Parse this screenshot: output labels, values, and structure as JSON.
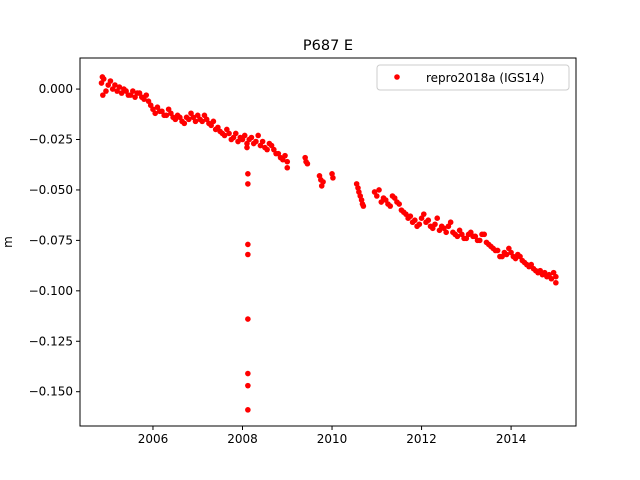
{
  "chart_data": {
    "type": "scatter",
    "title": "P687 E",
    "xlabel": "",
    "ylabel": "m",
    "xlim": [
      2004.37,
      2015.45
    ],
    "ylim": [
      -0.167,
      0.0154
    ],
    "xticks": [
      2006,
      2008,
      2010,
      2012,
      2014
    ],
    "xtick_labels": [
      "2006",
      "2008",
      "2010",
      "2012",
      "2014"
    ],
    "yticks": [
      0.0,
      -0.025,
      -0.05,
      -0.075,
      -0.1,
      -0.125,
      -0.15
    ],
    "ytick_labels": [
      "0.000",
      "−0.025",
      "−0.050",
      "−0.075",
      "−0.100",
      "−0.125",
      "−0.150"
    ],
    "grid": false,
    "legend": {
      "placement": "top-right",
      "entries": [
        "repro2018a (IGS14)"
      ]
    },
    "series": [
      {
        "name": "repro2018a (IGS14)",
        "color": "#ff0000",
        "marker": "circle",
        "points": [
          [
            2004.85,
            0.003
          ],
          [
            2004.87,
            0.006
          ],
          [
            2004.88,
            -0.003
          ],
          [
            2004.9,
            0.005
          ],
          [
            2004.95,
            -0.001
          ],
          [
            2005.0,
            0.002
          ],
          [
            2005.05,
            0.004
          ],
          [
            2005.1,
            0.0
          ],
          [
            2005.15,
            0.002
          ],
          [
            2005.2,
            -0.001
          ],
          [
            2005.25,
            0.001
          ],
          [
            2005.3,
            -0.002
          ],
          [
            2005.35,
            0.0
          ],
          [
            2005.4,
            -0.001
          ],
          [
            2005.45,
            -0.003
          ],
          [
            2005.5,
            -0.003
          ],
          [
            2005.55,
            -0.001
          ],
          [
            2005.6,
            -0.004
          ],
          [
            2005.65,
            -0.002
          ],
          [
            2005.7,
            -0.002
          ],
          [
            2005.75,
            -0.004
          ],
          [
            2005.8,
            -0.005
          ],
          [
            2005.85,
            -0.003
          ],
          [
            2005.9,
            -0.006
          ],
          [
            2005.95,
            -0.008
          ],
          [
            2006.0,
            -0.01
          ],
          [
            2006.05,
            -0.012
          ],
          [
            2006.1,
            -0.009
          ],
          [
            2006.15,
            -0.011
          ],
          [
            2006.2,
            -0.011
          ],
          [
            2006.25,
            -0.013
          ],
          [
            2006.3,
            -0.013
          ],
          [
            2006.35,
            -0.01
          ],
          [
            2006.4,
            -0.012
          ],
          [
            2006.45,
            -0.014
          ],
          [
            2006.5,
            -0.015
          ],
          [
            2006.55,
            -0.013
          ],
          [
            2006.6,
            -0.014
          ],
          [
            2006.65,
            -0.016
          ],
          [
            2006.7,
            -0.017
          ],
          [
            2006.75,
            -0.014
          ],
          [
            2006.8,
            -0.015
          ],
          [
            2006.85,
            -0.012
          ],
          [
            2006.9,
            -0.014
          ],
          [
            2006.95,
            -0.016
          ],
          [
            2007.0,
            -0.013
          ],
          [
            2007.05,
            -0.015
          ],
          [
            2007.1,
            -0.016
          ],
          [
            2007.15,
            -0.013
          ],
          [
            2007.2,
            -0.015
          ],
          [
            2007.25,
            -0.017
          ],
          [
            2007.3,
            -0.018
          ],
          [
            2007.35,
            -0.016
          ],
          [
            2007.4,
            -0.02
          ],
          [
            2007.45,
            -0.019
          ],
          [
            2007.5,
            -0.021
          ],
          [
            2007.55,
            -0.022
          ],
          [
            2007.6,
            -0.023
          ],
          [
            2007.65,
            -0.02
          ],
          [
            2007.7,
            -0.022
          ],
          [
            2007.75,
            -0.025
          ],
          [
            2007.8,
            -0.024
          ],
          [
            2007.85,
            -0.022
          ],
          [
            2007.9,
            -0.026
          ],
          [
            2007.95,
            -0.024
          ],
          [
            2008.0,
            -0.025
          ],
          [
            2008.05,
            -0.023
          ],
          [
            2008.1,
            -0.027
          ],
          [
            2008.1,
            -0.029
          ],
          [
            2008.15,
            -0.025
          ],
          [
            2008.2,
            -0.024
          ],
          [
            2008.25,
            -0.027
          ],
          [
            2008.3,
            -0.026
          ],
          [
            2008.35,
            -0.023
          ],
          [
            2008.4,
            -0.028
          ],
          [
            2008.45,
            -0.026
          ],
          [
            2008.5,
            -0.029
          ],
          [
            2008.55,
            -0.03
          ],
          [
            2008.6,
            -0.027
          ],
          [
            2008.65,
            -0.028
          ],
          [
            2008.7,
            -0.03
          ],
          [
            2008.75,
            -0.032
          ],
          [
            2008.8,
            -0.032
          ],
          [
            2008.85,
            -0.034
          ],
          [
            2008.9,
            -0.035
          ],
          [
            2008.95,
            -0.033
          ],
          [
            2009.0,
            -0.036
          ],
          [
            2009.0,
            -0.039
          ],
          [
            2009.4,
            -0.034
          ],
          [
            2009.42,
            -0.036
          ],
          [
            2009.45,
            -0.037
          ],
          [
            2009.72,
            -0.043
          ],
          [
            2009.75,
            -0.045
          ],
          [
            2009.77,
            -0.048
          ],
          [
            2009.8,
            -0.046
          ],
          [
            2010.0,
            -0.042
          ],
          [
            2010.02,
            -0.044
          ],
          [
            2010.55,
            -0.047
          ],
          [
            2010.58,
            -0.049
          ],
          [
            2010.6,
            -0.051
          ],
          [
            2010.63,
            -0.053
          ],
          [
            2010.66,
            -0.055
          ],
          [
            2010.68,
            -0.057
          ],
          [
            2010.7,
            -0.058
          ],
          [
            2010.95,
            -0.051
          ],
          [
            2011.0,
            -0.053
          ],
          [
            2011.05,
            -0.05
          ],
          [
            2011.1,
            -0.056
          ],
          [
            2011.15,
            -0.054
          ],
          [
            2011.2,
            -0.055
          ],
          [
            2011.25,
            -0.057
          ],
          [
            2011.3,
            -0.058
          ],
          [
            2011.35,
            -0.053
          ],
          [
            2011.4,
            -0.054
          ],
          [
            2011.45,
            -0.056
          ],
          [
            2011.5,
            -0.057
          ],
          [
            2011.55,
            -0.06
          ],
          [
            2011.6,
            -0.061
          ],
          [
            2011.65,
            -0.062
          ],
          [
            2011.7,
            -0.064
          ],
          [
            2011.75,
            -0.063
          ],
          [
            2011.8,
            -0.066
          ],
          [
            2011.85,
            -0.065
          ],
          [
            2011.9,
            -0.068
          ],
          [
            2011.95,
            -0.067
          ],
          [
            2012.0,
            -0.064
          ],
          [
            2012.05,
            -0.062
          ],
          [
            2012.1,
            -0.066
          ],
          [
            2012.15,
            -0.065
          ],
          [
            2012.2,
            -0.068
          ],
          [
            2012.25,
            -0.069
          ],
          [
            2012.3,
            -0.067
          ],
          [
            2012.35,
            -0.064
          ],
          [
            2012.4,
            -0.07
          ],
          [
            2012.45,
            -0.068
          ],
          [
            2012.5,
            -0.069
          ],
          [
            2012.55,
            -0.071
          ],
          [
            2012.6,
            -0.068
          ],
          [
            2012.65,
            -0.066
          ],
          [
            2012.7,
            -0.071
          ],
          [
            2012.75,
            -0.072
          ],
          [
            2012.8,
            -0.073
          ],
          [
            2012.85,
            -0.07
          ],
          [
            2012.9,
            -0.072
          ],
          [
            2012.95,
            -0.074
          ],
          [
            2013.0,
            -0.074
          ],
          [
            2013.05,
            -0.072
          ],
          [
            2013.1,
            -0.071
          ],
          [
            2013.15,
            -0.073
          ],
          [
            2013.2,
            -0.073
          ],
          [
            2013.25,
            -0.075
          ],
          [
            2013.3,
            -0.075
          ],
          [
            2013.35,
            -0.072
          ],
          [
            2013.4,
            -0.072
          ],
          [
            2013.45,
            -0.076
          ],
          [
            2013.5,
            -0.077
          ],
          [
            2013.55,
            -0.078
          ],
          [
            2013.6,
            -0.079
          ],
          [
            2013.65,
            -0.08
          ],
          [
            2013.7,
            -0.08
          ],
          [
            2013.75,
            -0.083
          ],
          [
            2013.8,
            -0.083
          ],
          [
            2013.85,
            -0.081
          ],
          [
            2013.9,
            -0.082
          ],
          [
            2013.95,
            -0.079
          ],
          [
            2014.0,
            -0.081
          ],
          [
            2014.05,
            -0.083
          ],
          [
            2014.1,
            -0.084
          ],
          [
            2014.15,
            -0.082
          ],
          [
            2014.2,
            -0.083
          ],
          [
            2014.25,
            -0.085
          ],
          [
            2014.3,
            -0.086
          ],
          [
            2014.35,
            -0.087
          ],
          [
            2014.4,
            -0.088
          ],
          [
            2014.45,
            -0.087
          ],
          [
            2014.5,
            -0.089
          ],
          [
            2014.55,
            -0.09
          ],
          [
            2014.6,
            -0.091
          ],
          [
            2014.65,
            -0.09
          ],
          [
            2014.7,
            -0.092
          ],
          [
            2014.75,
            -0.091
          ],
          [
            2014.8,
            -0.093
          ],
          [
            2014.85,
            -0.092
          ],
          [
            2014.9,
            -0.094
          ],
          [
            2014.95,
            -0.091
          ],
          [
            2015.0,
            -0.093
          ],
          [
            2015.0,
            -0.096
          ],
          [
            2008.12,
            -0.042
          ],
          [
            2008.12,
            -0.047
          ],
          [
            2008.12,
            -0.077
          ],
          [
            2008.12,
            -0.082
          ],
          [
            2008.12,
            -0.114
          ],
          [
            2008.12,
            -0.141
          ],
          [
            2008.12,
            -0.147
          ],
          [
            2008.12,
            -0.159
          ]
        ]
      }
    ]
  }
}
